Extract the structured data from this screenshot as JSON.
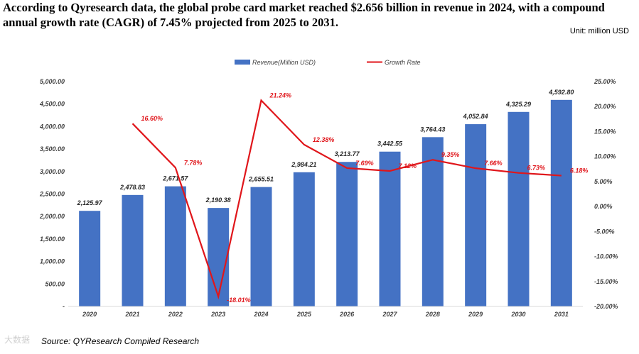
{
  "headline": "According to Qyresearch data, the global probe card market reached $2.656 billion in revenue in 2024, with a compound annual growth rate (CAGR) of 7.45% projected from 2025 to 2031.",
  "unit": "Unit: million USD",
  "source": "Source: QYResearch Compiled Research",
  "watermark": "大数据",
  "chart_data": {
    "type": "bar",
    "categories": [
      "2020",
      "2021",
      "2022",
      "2023",
      "2024",
      "2025",
      "2026",
      "2027",
      "2028",
      "2029",
      "2030",
      "2031"
    ],
    "series": [
      {
        "name": "Revenue(Million USD)",
        "type": "bar",
        "axis": "left",
        "color": "#4472c4",
        "values": [
          2125.97,
          2478.83,
          2671.57,
          2190.38,
          2655.51,
          2984.21,
          3213.77,
          3442.55,
          3764.43,
          4052.84,
          4325.29,
          4592.8
        ],
        "labels": [
          "2,125.97",
          "2,478.83",
          "2,671.57",
          "2,190.38",
          "2,655.51",
          "2,984.21",
          "3,213.77",
          "3,442.55",
          "3,764.43",
          "4,052.84",
          "4,325.29",
          "4,592.80"
        ]
      },
      {
        "name": "Growth Rate",
        "type": "line",
        "axis": "right",
        "color": "#e0161b",
        "values": [
          null,
          16.6,
          7.78,
          -18.01,
          21.24,
          12.38,
          7.69,
          7.12,
          9.35,
          7.66,
          6.73,
          6.18
        ],
        "labels": [
          "",
          "16.60%",
          "7.78%",
          "-18.01%",
          "21.24%",
          "12.38%",
          "7.69%",
          "7.12%",
          "9.35%",
          "7.66%",
          "6.73%",
          "6.18%"
        ]
      }
    ],
    "y_left": {
      "min": 0,
      "max": 5000,
      "step": 500,
      "tick_labels": [
        "-",
        "500.00",
        "1,000.00",
        "1,500.00",
        "2,000.00",
        "2,500.00",
        "3,000.00",
        "3,500.00",
        "4,000.00",
        "4,500.00",
        "5,000.00"
      ]
    },
    "y_right": {
      "min": -20,
      "max": 25,
      "step": 5,
      "tick_labels": [
        "-20.00%",
        "-15.00%",
        "-10.00%",
        "-5.00%",
        "0.00%",
        "5.00%",
        "10.00%",
        "15.00%",
        "20.00%",
        "25.00%"
      ]
    },
    "legend": "top-center",
    "grid": false
  }
}
